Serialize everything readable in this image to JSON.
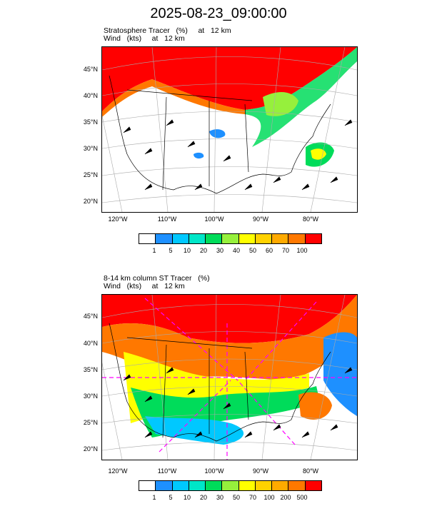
{
  "title": "2025-08-23_09:00:00",
  "panels": [
    {
      "line1": "Stratosphere Tracer   (%)     at   12 km",
      "line2": "Wind   (kts)     at   12 km",
      "lat_labels": [
        "45°N",
        "40°N",
        "35°N",
        "30°N",
        "25°N",
        "20°N"
      ],
      "lon_labels": [
        "120°W",
        "110°W",
        "100°W",
        "90°W",
        "80°W"
      ],
      "colorbar": {
        "labels": [
          "1",
          "5",
          "10",
          "20",
          "30",
          "40",
          "50",
          "60",
          "70",
          "100"
        ],
        "colors": [
          "#ffffff",
          "#1e90ff",
          "#00c8ff",
          "#00e6c8",
          "#00dc5a",
          "#96f03c",
          "#ffff00",
          "#ffd200",
          "#ffaa00",
          "#ff7800",
          "#ff0000"
        ]
      }
    },
    {
      "line1": "8-14 km column ST Tracer   (%)",
      "line2": "Wind   (kts)     at   12 km",
      "lat_labels": [
        "45°N",
        "40°N",
        "35°N",
        "30°N",
        "25°N",
        "20°N"
      ],
      "lon_labels": [
        "120°W",
        "110°W",
        "100°W",
        "90°W",
        "80°W"
      ],
      "colorbar": {
        "labels": [
          "1",
          "5",
          "10",
          "20",
          "30",
          "50",
          "70",
          "100",
          "200",
          "500"
        ],
        "colors": [
          "#ffffff",
          "#1e90ff",
          "#00c8ff",
          "#00e6c8",
          "#00dc5a",
          "#96f03c",
          "#ffff00",
          "#ffd200",
          "#ffaa00",
          "#ff7800",
          "#ff0000"
        ]
      }
    }
  ]
}
